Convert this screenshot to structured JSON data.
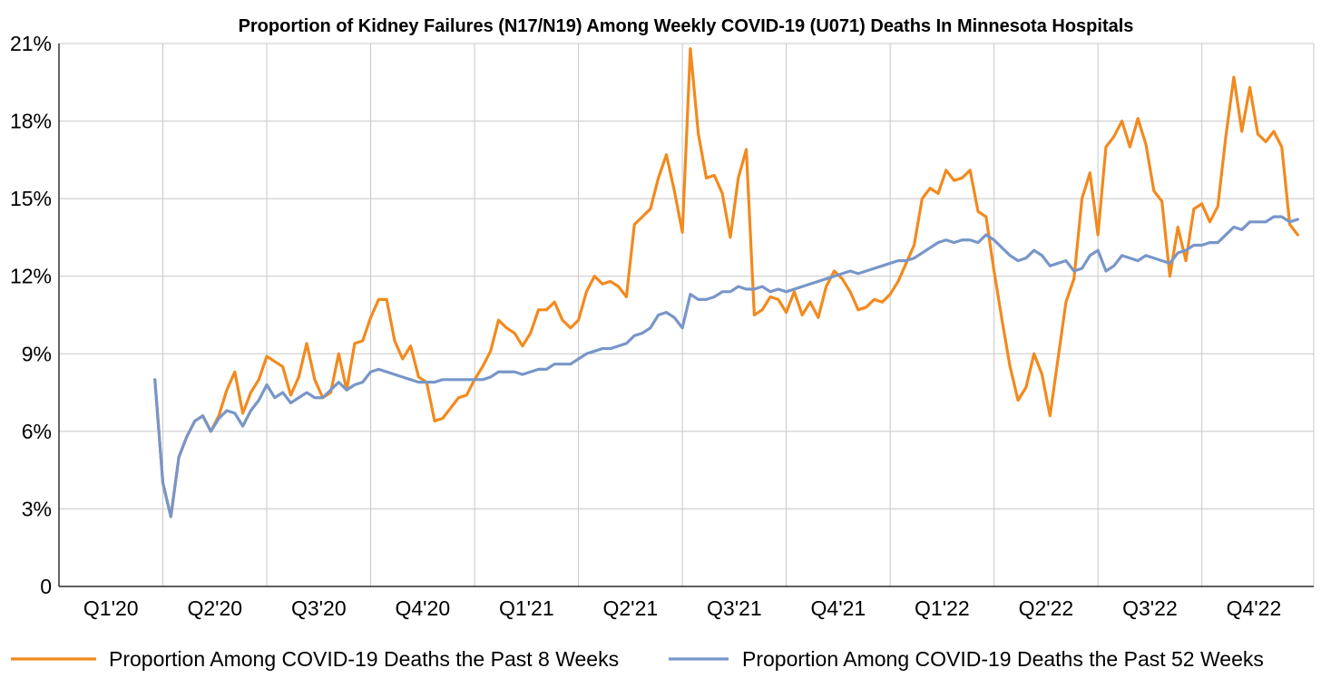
{
  "chart_data": {
    "type": "line",
    "title": "Proportion of Kidney Failures (N17/N19) Among Weekly COVID-19 (U071) Deaths In Minnesota Hospitals",
    "xlabel": "",
    "ylabel": "",
    "ylim": [
      0,
      21
    ],
    "yticks": [
      0,
      3,
      6,
      9,
      12,
      15,
      18,
      21
    ],
    "ytick_labels": [
      "0",
      "3%",
      "6%",
      "9%",
      "12%",
      "15%",
      "18%",
      "21%"
    ],
    "x_unit": "weeks since start of 2020",
    "xlim": [
      0,
      157
    ],
    "quarter_labels": [
      "Q1'20",
      "Q2'20",
      "Q3'20",
      "Q4'20",
      "Q1'21",
      "Q2'21",
      "Q3'21",
      "Q4'21",
      "Q1'22",
      "Q2'22",
      "Q3'22",
      "Q4'22"
    ],
    "grid": true,
    "legend_position": "bottom",
    "series": [
      {
        "name": "Proportion Among COVID-19 Deaths the Past 8 Weeks",
        "color": "#f28a1e",
        "x_start": 12,
        "values": [
          8.0,
          4.0,
          2.7,
          5.0,
          5.8,
          6.4,
          6.6,
          6.0,
          6.6,
          7.6,
          8.3,
          6.7,
          7.5,
          8.0,
          8.9,
          8.7,
          8.5,
          7.4,
          8.1,
          9.4,
          8.0,
          7.3,
          7.5,
          9.0,
          7.6,
          9.4,
          9.5,
          10.4,
          11.1,
          11.1,
          9.5,
          8.8,
          9.3,
          8.1,
          7.9,
          6.4,
          6.5,
          6.9,
          7.3,
          7.4,
          8.0,
          8.5,
          9.1,
          10.3,
          10.0,
          9.8,
          9.3,
          9.8,
          10.7,
          10.7,
          11.0,
          10.3,
          10.0,
          10.3,
          11.4,
          12.0,
          11.7,
          11.8,
          11.6,
          11.2,
          14.0,
          14.3,
          14.6,
          15.8,
          16.7,
          15.3,
          13.7,
          20.8,
          17.5,
          15.8,
          15.9,
          15.2,
          13.5,
          15.8,
          16.9,
          10.5,
          10.7,
          11.2,
          11.1,
          10.6,
          11.4,
          10.5,
          11.0,
          10.4,
          11.6,
          12.2,
          11.9,
          11.4,
          10.7,
          10.8,
          11.1,
          11.0,
          11.3,
          11.8,
          12.5,
          13.2,
          15.0,
          15.4,
          15.2,
          16.1,
          15.7,
          15.8,
          16.1,
          14.5,
          14.3,
          12.2,
          10.3,
          8.5,
          7.2,
          7.7,
          9.0,
          8.2,
          6.6,
          8.8,
          11.0,
          11.9,
          15.0,
          16.0,
          13.6,
          17.0,
          17.4,
          18.0,
          17.0,
          18.1,
          17.1,
          15.3,
          14.9,
          12.0,
          13.9,
          12.6,
          14.6,
          14.8,
          14.1,
          14.7,
          17.4,
          19.7,
          17.6,
          19.3,
          17.5,
          17.2,
          17.6,
          17.0,
          14.0,
          13.6
        ]
      },
      {
        "name": "Proportion Among COVID-19 Deaths the Past 52 Weeks",
        "color": "#7896c8",
        "x_start": 12,
        "values": [
          8.0,
          4.0,
          2.7,
          5.0,
          5.8,
          6.4,
          6.6,
          6.0,
          6.5,
          6.8,
          6.7,
          6.2,
          6.8,
          7.2,
          7.8,
          7.3,
          7.5,
          7.1,
          7.3,
          7.5,
          7.3,
          7.3,
          7.6,
          7.9,
          7.6,
          7.8,
          7.9,
          8.3,
          8.4,
          8.3,
          8.2,
          8.1,
          8.0,
          7.9,
          7.9,
          7.9,
          8.0,
          8.0,
          8.0,
          8.0,
          8.0,
          8.0,
          8.1,
          8.3,
          8.3,
          8.3,
          8.2,
          8.3,
          8.4,
          8.4,
          8.6,
          8.6,
          8.6,
          8.8,
          9.0,
          9.1,
          9.2,
          9.2,
          9.3,
          9.4,
          9.7,
          9.8,
          10.0,
          10.5,
          10.6,
          10.4,
          10.0,
          11.3,
          11.1,
          11.1,
          11.2,
          11.4,
          11.4,
          11.6,
          11.5,
          11.5,
          11.6,
          11.4,
          11.5,
          11.4,
          11.5,
          11.6,
          11.7,
          11.8,
          11.9,
          12.0,
          12.1,
          12.2,
          12.1,
          12.2,
          12.3,
          12.4,
          12.5,
          12.6,
          12.6,
          12.7,
          12.9,
          13.1,
          13.3,
          13.4,
          13.3,
          13.4,
          13.4,
          13.3,
          13.6,
          13.4,
          13.1,
          12.8,
          12.6,
          12.7,
          13.0,
          12.8,
          12.4,
          12.5,
          12.6,
          12.2,
          12.3,
          12.8,
          13.0,
          12.2,
          12.4,
          12.8,
          12.7,
          12.6,
          12.8,
          12.7,
          12.6,
          12.5,
          12.9,
          13.0,
          13.2,
          13.2,
          13.3,
          13.3,
          13.6,
          13.9,
          13.8,
          14.1,
          14.1,
          14.1,
          14.3,
          14.3,
          14.1,
          14.2
        ]
      }
    ]
  }
}
